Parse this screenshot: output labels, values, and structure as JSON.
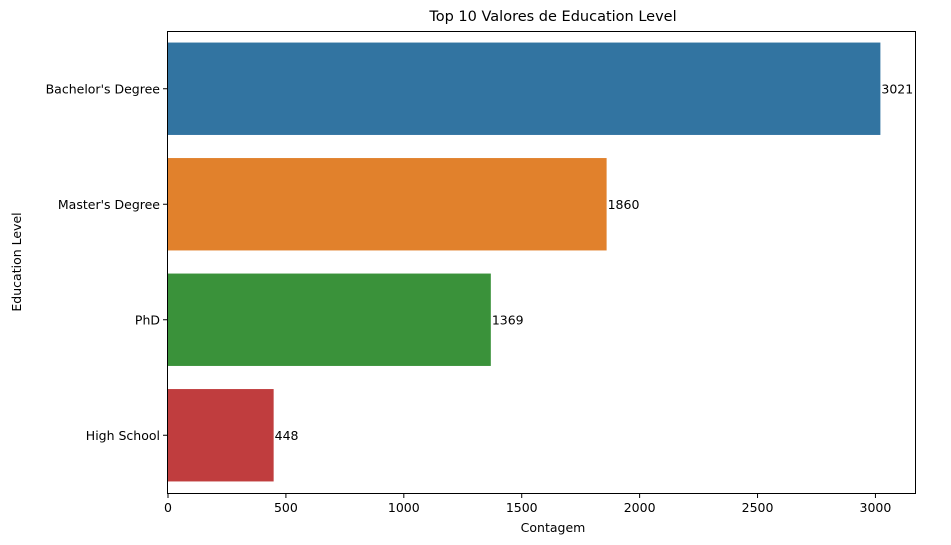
{
  "chart_data": {
    "type": "bar",
    "orientation": "horizontal",
    "title": "Top 10 Valores de Education Level",
    "xlabel": "Contagem",
    "ylabel": "Education Level",
    "categories": [
      "Bachelor's Degree",
      "Master's Degree",
      "PhD",
      "High School"
    ],
    "values": [
      3021,
      1860,
      1369,
      448
    ],
    "colors": [
      "#3274a1",
      "#e1812c",
      "#3a923a",
      "#c03d3e"
    ],
    "xlim": [
      0,
      3172
    ],
    "xticks": [
      0,
      500,
      1000,
      1500,
      2000,
      2500,
      3000
    ],
    "grid": false,
    "data_labels": true
  }
}
